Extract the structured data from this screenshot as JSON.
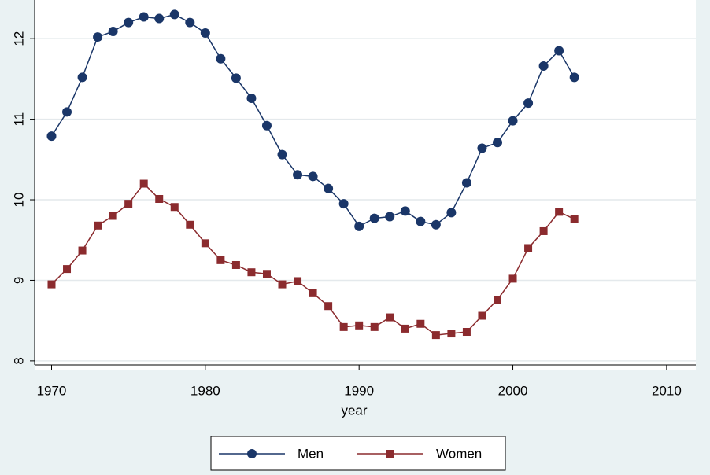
{
  "chart_data": {
    "type": "line",
    "x_label": "year",
    "x": [
      1970,
      1971,
      1972,
      1973,
      1974,
      1975,
      1976,
      1977,
      1978,
      1979,
      1980,
      1981,
      1982,
      1983,
      1984,
      1985,
      1986,
      1987,
      1988,
      1989,
      1990,
      1991,
      1992,
      1993,
      1994,
      1995,
      1996,
      1997,
      1998,
      1999,
      2000,
      2001,
      2002,
      2003,
      2004
    ],
    "series": [
      {
        "name": "Men",
        "color": "#1a3668",
        "marker": "circle",
        "values": [
          10.79,
          11.09,
          11.52,
          12.02,
          12.09,
          12.2,
          12.27,
          12.25,
          12.3,
          12.2,
          12.07,
          11.75,
          11.51,
          11.26,
          10.92,
          10.56,
          10.31,
          10.29,
          10.14,
          9.95,
          9.67,
          9.77,
          9.79,
          9.86,
          9.73,
          9.69,
          9.84,
          10.21,
          10.64,
          10.71,
          10.98,
          11.2,
          11.66,
          11.85,
          11.52
        ]
      },
      {
        "name": "Women",
        "color": "#8b2b2e",
        "marker": "square",
        "values": [
          8.95,
          9.14,
          9.37,
          9.68,
          9.8,
          9.95,
          10.2,
          10.01,
          9.91,
          9.69,
          9.46,
          9.25,
          9.19,
          9.1,
          9.08,
          8.95,
          8.99,
          8.84,
          8.68,
          8.42,
          8.44,
          8.42,
          8.54,
          8.4,
          8.46,
          8.32,
          8.34,
          8.36,
          8.56,
          8.76,
          9.02,
          9.4,
          9.61,
          9.85,
          9.76
        ]
      }
    ],
    "xlim": [
      1968.9,
      2011.9
    ],
    "xticks": [
      1970,
      1980,
      1990,
      2000,
      2010
    ],
    "ylim": [
      7.95,
      12.48
    ],
    "yticks": [
      8,
      9,
      10,
      11,
      12
    ],
    "grid": true,
    "legend": "bottom"
  }
}
